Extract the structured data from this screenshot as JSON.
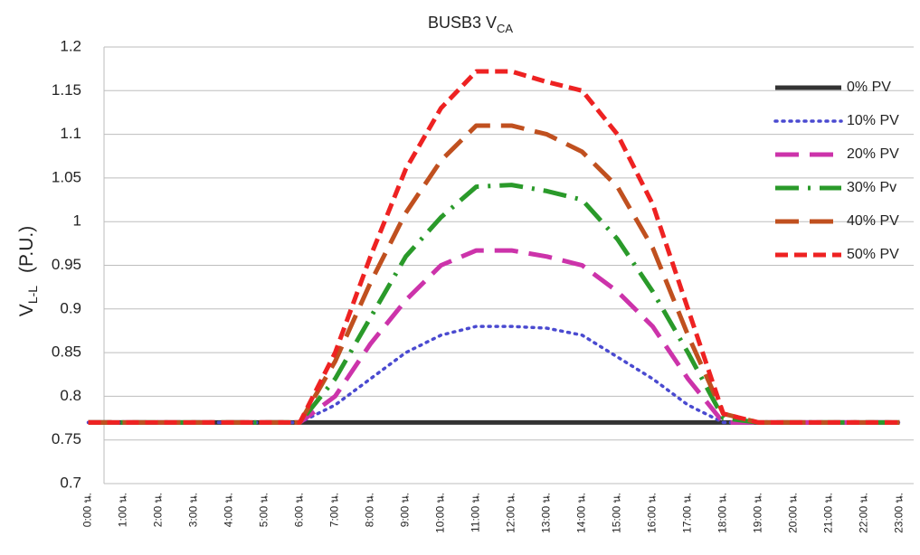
{
  "chart_data": {
    "type": "line",
    "title": "BUSB3 V",
    "title_subscript": "CA",
    "ylabel": "V",
    "ylabel_subscript": "L-L",
    "ylabel_unit": "(P.U.)",
    "categories": [
      "0:00 น.",
      "1:00 น.",
      "2:00 น.",
      "3:00 น.",
      "4:00 น.",
      "5:00 น.",
      "6:00 น.",
      "7:00 น.",
      "8:00 น.",
      "9:00 น.",
      "10:00 น.",
      "11:00 น.",
      "12:00 น.",
      "13:00 น.",
      "14:00 น.",
      "15:00 น.",
      "16:00 น.",
      "17:00 น.",
      "18:00 น.",
      "19:00 น.",
      "20:00 น.",
      "21:00 น.",
      "22:00 น.",
      "23:00 น."
    ],
    "series": [
      {
        "name": "0% PV",
        "color": "#333333",
        "dash": "solid",
        "values": [
          0.77,
          0.77,
          0.77,
          0.77,
          0.77,
          0.77,
          0.77,
          0.77,
          0.77,
          0.77,
          0.77,
          0.77,
          0.77,
          0.77,
          0.77,
          0.77,
          0.77,
          0.77,
          0.77,
          0.77,
          0.77,
          0.77,
          0.77,
          0.77
        ]
      },
      {
        "name": "10% PV",
        "color": "#4a4ad0",
        "dash": "dot",
        "values": [
          0.77,
          0.77,
          0.77,
          0.77,
          0.77,
          0.77,
          0.77,
          0.79,
          0.82,
          0.85,
          0.87,
          0.88,
          0.88,
          0.878,
          0.87,
          0.845,
          0.82,
          0.79,
          0.77,
          0.77,
          0.77,
          0.77,
          0.77,
          0.77
        ]
      },
      {
        "name": "20% PV",
        "color": "#cc33aa",
        "dash": "long-dash",
        "values": [
          0.77,
          0.77,
          0.77,
          0.77,
          0.77,
          0.77,
          0.77,
          0.8,
          0.86,
          0.91,
          0.95,
          0.967,
          0.967,
          0.96,
          0.95,
          0.92,
          0.88,
          0.82,
          0.77,
          0.77,
          0.77,
          0.77,
          0.77,
          0.77
        ]
      },
      {
        "name": "30% Pv",
        "color": "#2a9a2a",
        "dash": "long-dash-dot",
        "values": [
          0.77,
          0.77,
          0.77,
          0.77,
          0.77,
          0.77,
          0.77,
          0.82,
          0.89,
          0.96,
          1.005,
          1.04,
          1.042,
          1.035,
          1.025,
          0.98,
          0.92,
          0.85,
          0.775,
          0.77,
          0.77,
          0.77,
          0.77,
          0.77
        ]
      },
      {
        "name": "40% PV",
        "color": "#c0501f",
        "dash": "long-dash",
        "values": [
          0.77,
          0.77,
          0.77,
          0.77,
          0.77,
          0.77,
          0.77,
          0.84,
          0.93,
          1.01,
          1.07,
          1.11,
          1.11,
          1.1,
          1.08,
          1.04,
          0.97,
          0.87,
          0.78,
          0.77,
          0.77,
          0.77,
          0.77,
          0.77
        ]
      },
      {
        "name": "50% PV",
        "color": "#ee2222",
        "dash": "dash",
        "values": [
          0.77,
          0.77,
          0.77,
          0.77,
          0.77,
          0.77,
          0.77,
          0.85,
          0.96,
          1.06,
          1.13,
          1.172,
          1.172,
          1.16,
          1.15,
          1.1,
          1.02,
          0.9,
          0.78,
          0.77,
          0.77,
          0.77,
          0.77,
          0.77
        ]
      }
    ],
    "ylim": [
      0.7,
      1.2
    ],
    "yticks": [
      0.7,
      0.75,
      0.8,
      0.85,
      0.9,
      0.95,
      1,
      1.05,
      1.1,
      1.15,
      1.2
    ],
    "grid": true,
    "legend": "right"
  }
}
